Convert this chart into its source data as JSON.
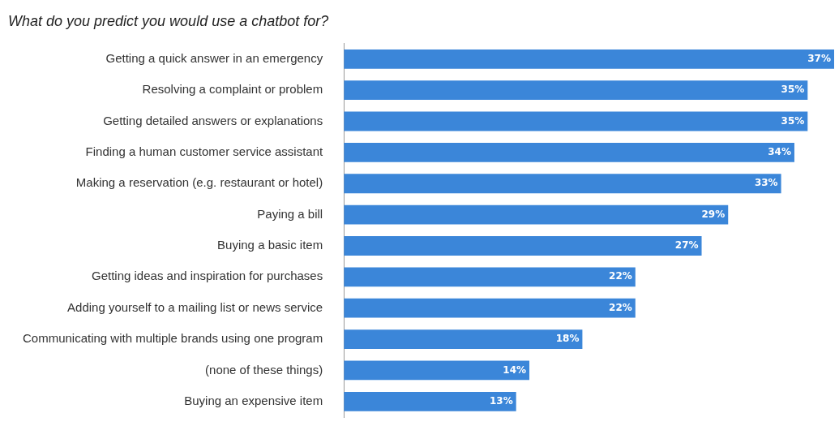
{
  "chart_data": {
    "type": "bar",
    "orientation": "horizontal",
    "title": "What do you predict you would use a chatbot for?",
    "categories": [
      "Getting a quick answer in an emergency",
      "Resolving a complaint or problem",
      "Getting detailed answers or explanations",
      "Finding a human customer service assistant",
      "Making a reservation (e.g. restaurant or hotel)",
      "Paying a bill",
      "Buying a basic item",
      "Getting ideas and inspiration for purchases",
      "Adding yourself to a mailing list or news service",
      "Communicating with multiple brands using one program",
      "(none of these things)",
      "Buying an expensive item"
    ],
    "values": [
      37,
      35,
      35,
      34,
      33,
      29,
      27,
      22,
      22,
      18,
      14,
      13
    ],
    "value_labels": [
      "37%",
      "35%",
      "35%",
      "34%",
      "33%",
      "29%",
      "27%",
      "22%",
      "22%",
      "18%",
      "14%",
      "13%"
    ],
    "color": "#3b86d9",
    "legend": false,
    "grid": false
  }
}
